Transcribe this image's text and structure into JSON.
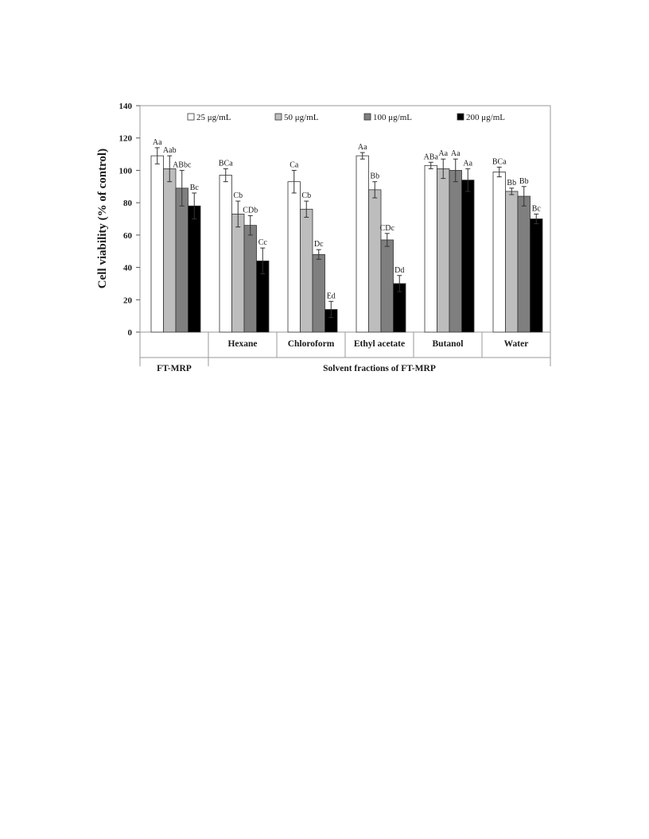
{
  "chart_data": {
    "type": "bar",
    "ylabel": "Cell viability (% of control)",
    "ylim": [
      0,
      140
    ],
    "yticks": [
      0,
      20,
      40,
      60,
      80,
      100,
      120,
      140
    ],
    "grid": false,
    "legend_position": "top",
    "categories": [
      "FT-MRP",
      "Hexane",
      "Chloroform",
      "Ethyl acetate",
      "Butanol",
      "Water"
    ],
    "group_labels": [
      {
        "label": "FT-MRP",
        "from": 0,
        "to": 0
      },
      {
        "label": "Solvent fractions of FT-MRP",
        "from": 1,
        "to": 5
      }
    ],
    "series": [
      {
        "name": "25 μg/mL",
        "color": "#ffffff",
        "values": [
          109,
          97,
          93,
          109,
          103,
          99
        ],
        "errors": [
          5,
          4,
          7,
          2,
          2,
          3
        ],
        "labels": [
          "Aa",
          "BCa",
          "Ca",
          "Aa",
          "ABa",
          "BCa"
        ]
      },
      {
        "name": "50 μg/mL",
        "color": "#bdbdbd",
        "values": [
          101,
          73,
          76,
          88,
          101,
          87
        ],
        "errors": [
          8,
          8,
          5,
          5,
          6,
          2
        ],
        "labels": [
          "Aab",
          "Cb",
          "Cb",
          "Bb",
          "Aa",
          "Bb"
        ]
      },
      {
        "name": "100 μg/mL",
        "color": "#7f7f7f",
        "values": [
          89,
          66,
          48,
          57,
          100,
          84
        ],
        "errors": [
          11,
          6,
          3,
          4,
          7,
          6
        ],
        "labels": [
          "ABbc",
          "CDb",
          "Dc",
          "CDc",
          "Aa",
          "Bb"
        ]
      },
      {
        "name": "200 μg/mL",
        "color": "#000000",
        "values": [
          78,
          44,
          14,
          30,
          94,
          70
        ],
        "errors": [
          8,
          8,
          5,
          5,
          7,
          3
        ],
        "labels": [
          "Bc",
          "Cc",
          "Ed",
          "Dd",
          "Aa",
          "Bc"
        ]
      }
    ]
  }
}
